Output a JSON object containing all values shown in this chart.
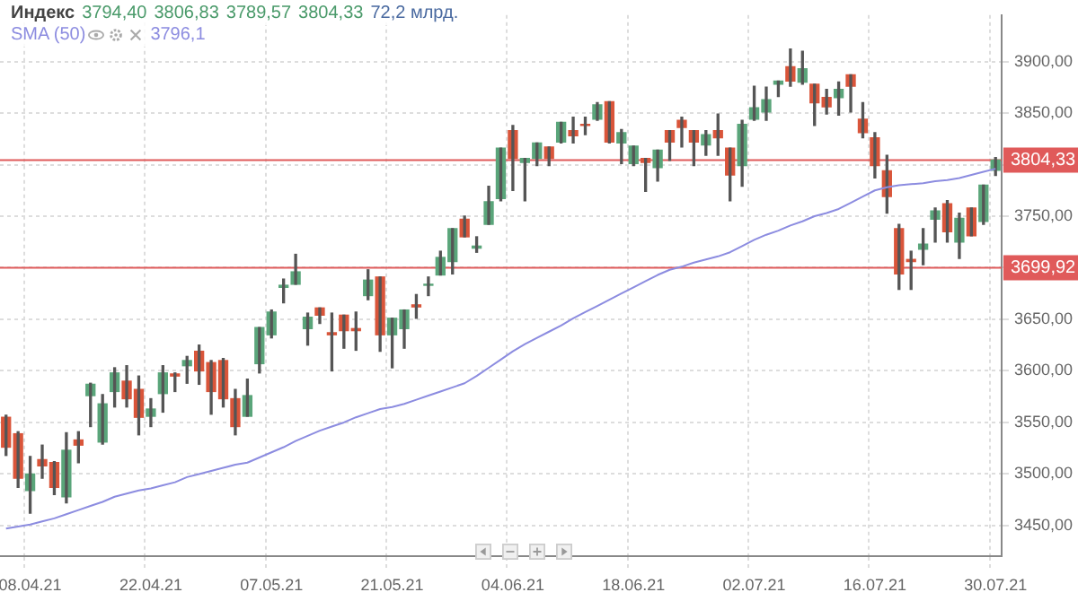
{
  "chart_data": {
    "type": "candlestick",
    "title": "Индекс",
    "legend": "top left",
    "grid": true,
    "categories": [
      null,
      null,
      "08.04.21",
      null,
      null,
      null,
      null,
      null,
      null,
      null,
      null,
      null,
      "22.04.21",
      null,
      null,
      null,
      null,
      null,
      null,
      null,
      null,
      null,
      "07.05.21",
      null,
      null,
      null,
      null,
      null,
      null,
      null,
      null,
      null,
      "21.05.21",
      null,
      null,
      null,
      null,
      null,
      null,
      null,
      null,
      null,
      "04.06.21",
      null,
      null,
      null,
      null,
      null,
      null,
      null,
      null,
      null,
      "18.06.21",
      null,
      null,
      null,
      null,
      null,
      null,
      null,
      null,
      null,
      "02.07.21",
      null,
      null,
      null,
      null,
      null,
      null,
      null,
      null,
      null,
      "16.07.21",
      null,
      null,
      null,
      null,
      null,
      null,
      null,
      null,
      null,
      "30.07.21"
    ],
    "ohlc": [
      [
        3555,
        3557,
        3518,
        3526
      ],
      [
        3539,
        3541,
        3487,
        3496
      ],
      [
        3484,
        3517,
        3462,
        3500
      ],
      [
        3514,
        3528,
        3496,
        3508
      ],
      [
        3511,
        3512,
        3480,
        3487
      ],
      [
        3478,
        3540,
        3472,
        3523
      ],
      [
        3533,
        3541,
        3511,
        3528
      ],
      [
        3576,
        3588,
        3546,
        3587
      ],
      [
        3531,
        3577,
        3529,
        3568
      ],
      [
        3580,
        3603,
        3565,
        3598
      ],
      [
        3590,
        3605,
        3565,
        3573
      ],
      [
        3582,
        3595,
        3538,
        3555
      ],
      [
        3556,
        3573,
        3546,
        3563
      ],
      [
        3578,
        3605,
        3560,
        3598
      ],
      [
        3597,
        3598,
        3580,
        3595
      ],
      [
        3605,
        3614,
        3588,
        3610
      ],
      [
        3619,
        3625,
        3587,
        3600
      ],
      [
        3608,
        3610,
        3558,
        3580
      ],
      [
        3610,
        3612,
        3565,
        3573
      ],
      [
        3573,
        3582,
        3538,
        3546
      ],
      [
        3556,
        3592,
        3556,
        3576
      ],
      [
        3607,
        3642,
        3598,
        3642
      ],
      [
        3635,
        3659,
        3632,
        3657
      ],
      [
        3681,
        3689,
        3666,
        3683
      ],
      [
        3684,
        3713,
        3684,
        3696
      ],
      [
        3641,
        3656,
        3625,
        3652
      ],
      [
        3661,
        3661,
        3646,
        3654
      ],
      [
        3637,
        3656,
        3600,
        3635
      ],
      [
        3654,
        3654,
        3622,
        3639
      ],
      [
        3641,
        3657,
        3620,
        3639
      ],
      [
        3673,
        3698,
        3669,
        3688
      ],
      [
        3691,
        3691,
        3619,
        3635
      ],
      [
        3635,
        3651,
        3603,
        3651
      ],
      [
        3641,
        3659,
        3622,
        3659
      ],
      [
        3664,
        3674,
        3651,
        3662
      ],
      [
        3683,
        3691,
        3673,
        3684
      ],
      [
        3693,
        3716,
        3693,
        3710
      ],
      [
        3706,
        3738,
        3694,
        3738
      ],
      [
        3747,
        3750,
        3730,
        3730
      ],
      [
        3719,
        3730,
        3715,
        3721
      ],
      [
        3742,
        3779,
        3742,
        3764
      ],
      [
        3767,
        3816,
        3765,
        3816
      ],
      [
        3833,
        3838,
        3775,
        3806
      ],
      [
        3802,
        3806,
        3765,
        3806
      ],
      [
        3806,
        3821,
        3799,
        3821
      ],
      [
        3817,
        3817,
        3799,
        3806
      ],
      [
        3822,
        3841,
        3821,
        3841
      ],
      [
        3833,
        3846,
        3821,
        3828
      ],
      [
        3839,
        3846,
        3829,
        3838
      ],
      [
        3844,
        3860,
        3843,
        3858
      ],
      [
        3861,
        3861,
        3821,
        3822
      ],
      [
        3821,
        3834,
        3801,
        3831
      ],
      [
        3801,
        3818,
        3799,
        3818
      ],
      [
        3806,
        3806,
        3774,
        3802
      ],
      [
        3797,
        3814,
        3784,
        3814
      ],
      [
        3833,
        3833,
        3804,
        3822
      ],
      [
        3843,
        3846,
        3817,
        3836
      ],
      [
        3833,
        3833,
        3799,
        3822
      ],
      [
        3819,
        3833,
        3809,
        3829
      ],
      [
        3833,
        3849,
        3809,
        3826
      ],
      [
        3816,
        3816,
        3765,
        3790
      ],
      [
        3799,
        3843,
        3779,
        3839
      ],
      [
        3844,
        3876,
        3843,
        3855
      ],
      [
        3851,
        3875,
        3843,
        3863
      ],
      [
        3878,
        3881,
        3866,
        3881
      ],
      [
        3895,
        3912,
        3876,
        3881
      ],
      [
        3880,
        3910,
        3878,
        3893
      ],
      [
        3878,
        3878,
        3838,
        3860
      ],
      [
        3865,
        3873,
        3849,
        3856
      ],
      [
        3865,
        3880,
        3848,
        3873
      ],
      [
        3887,
        3887,
        3851,
        3876
      ],
      [
        3844,
        3860,
        3826,
        3831
      ],
      [
        3826,
        3831,
        3787,
        3799
      ],
      [
        3794,
        3809,
        3753,
        3769
      ],
      [
        3738,
        3742,
        3679,
        3694
      ],
      [
        3708,
        3716,
        3679,
        3706
      ],
      [
        3718,
        3738,
        3703,
        3723
      ],
      [
        3747,
        3758,
        3725,
        3755
      ],
      [
        3762,
        3765,
        3725,
        3735
      ],
      [
        3725,
        3753,
        3709,
        3748
      ],
      [
        3758,
        3758,
        3731,
        3731
      ],
      [
        3745,
        3780,
        3742,
        3780
      ],
      [
        3794.4,
        3806.83,
        3789.57,
        3804.33
      ]
    ],
    "colors": [
      "#d9553a",
      "#d9553a",
      "#5aa57a",
      "#d9553a",
      "#d9553a",
      "#5aa57a",
      "#d9553a",
      "#5aa57a",
      "#5aa57a",
      "#5aa57a",
      "#d9553a",
      "#d9553a",
      "#5aa57a",
      "#5aa57a",
      "#d9553a",
      "#5aa57a",
      "#d9553a",
      "#d9553a",
      "#d9553a",
      "#d9553a",
      "#5aa57a",
      "#5aa57a",
      "#5aa57a",
      "#5aa57a",
      "#5aa57a",
      "#5aa57a",
      "#d9553a",
      "#d9553a",
      "#d9553a",
      "#d9553a",
      "#5aa57a",
      "#d9553a",
      "#5aa57a",
      "#5aa57a",
      "#d9553a",
      "#5aa57a",
      "#5aa57a",
      "#5aa57a",
      "#d9553a",
      "#5aa57a",
      "#5aa57a",
      "#5aa57a",
      "#d9553a",
      "#5aa57a",
      "#5aa57a",
      "#d9553a",
      "#5aa57a",
      "#d9553a",
      "#d9553a",
      "#5aa57a",
      "#d9553a",
      "#5aa57a",
      "#5aa57a",
      "#d9553a",
      "#5aa57a",
      "#d9553a",
      "#d9553a",
      "#d9553a",
      "#5aa57a",
      "#d9553a",
      "#d9553a",
      "#5aa57a",
      "#5aa57a",
      "#5aa57a",
      "#5aa57a",
      "#d9553a",
      "#5aa57a",
      "#d9553a",
      "#d9553a",
      "#5aa57a",
      "#d9553a",
      "#d9553a",
      "#d9553a",
      "#d9553a",
      "#d9553a",
      "#d9553a",
      "#5aa57a",
      "#5aa57a",
      "#d9553a",
      "#5aa57a",
      "#d9553a",
      "#5aa57a",
      "#5aa57a"
    ],
    "series": [
      {
        "name": "SMA (50)",
        "type": "line",
        "color": "#8c8ce0",
        "values": [
          3447,
          3449,
          3451,
          3454,
          3457,
          3461,
          3465,
          3469,
          3473,
          3478,
          3481,
          3484,
          3486,
          3489,
          3492,
          3497,
          3500,
          3503,
          3506,
          3509,
          3511,
          3516,
          3521,
          3526,
          3532,
          3537,
          3542,
          3546,
          3550,
          3555,
          3559,
          3563,
          3565,
          3568,
          3572,
          3576,
          3580,
          3584,
          3588,
          3595,
          3603,
          3611,
          3619,
          3626,
          3632,
          3638,
          3644,
          3651,
          3657,
          3663,
          3669,
          3675,
          3681,
          3687,
          3693,
          3698,
          3701,
          3705,
          3708,
          3711,
          3715,
          3721,
          3727,
          3732,
          3736,
          3741,
          3745,
          3750,
          3753,
          3757,
          3763,
          3769,
          3775,
          3778,
          3780,
          3781,
          3782,
          3784,
          3785,
          3787,
          3790,
          3793,
          3796
        ]
      }
    ],
    "ylim": [
      3420,
      3945
    ],
    "yticks": [
      {
        "value": 3450,
        "label": "3450,00"
      },
      {
        "value": 3500,
        "label": "3500,00"
      },
      {
        "value": 3550,
        "label": "3550,00"
      },
      {
        "value": 3600,
        "label": "3600,00"
      },
      {
        "value": 3650,
        "label": "3650,00"
      },
      {
        "value": 3700,
        "label": null
      },
      {
        "value": 3750,
        "label": "3750,00"
      },
      {
        "value": 3800,
        "label": null
      },
      {
        "value": 3850,
        "label": "3850,00"
      },
      {
        "value": 3900,
        "label": "3900,00"
      }
    ],
    "ref_lines": [
      {
        "axis": "y",
        "value": 3804.33,
        "label": "3804,33",
        "color": "#e05a5a"
      },
      {
        "axis": "y",
        "value": 3699.92,
        "label": "3699,92",
        "color": "#e05a5a"
      }
    ],
    "annotations": [
      "3794,40",
      "3806,83",
      "3789,57",
      "3804,33",
      "72,2 млрд.",
      "3796,1"
    ]
  }
}
